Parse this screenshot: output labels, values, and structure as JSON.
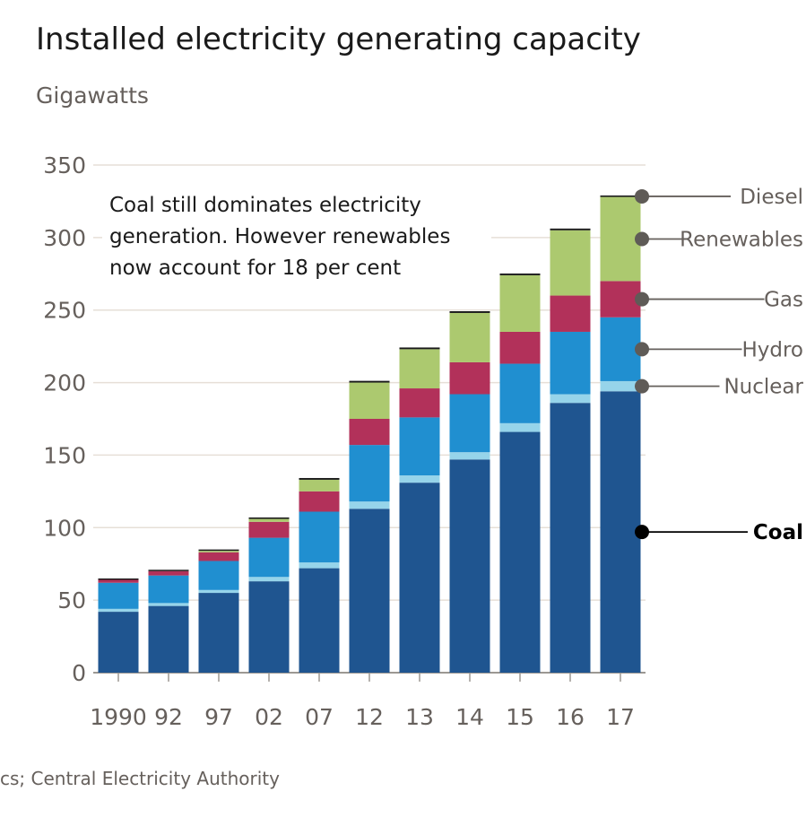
{
  "title": "Installed electricity generating capacity",
  "subtitle": "Gigawatts",
  "source": "cs; Central Electricity Authority",
  "chart_data": {
    "type": "bar",
    "stacked": true,
    "title": "Installed electricity generating capacity",
    "ylabel": "Gigawatts",
    "ylim": [
      0,
      350
    ],
    "yticks": [
      0,
      50,
      100,
      150,
      200,
      250,
      300,
      350
    ],
    "grid": true,
    "categories": [
      "1990",
      "92",
      "97",
      "02",
      "07",
      "12",
      "13",
      "14",
      "15",
      "16",
      "17"
    ],
    "annotation": [
      "Coal still dominates electricity",
      "generation. However renewables",
      "now account for 18 per cent"
    ],
    "series": [
      {
        "name": "Coal",
        "color": "#1f5590",
        "values": [
          42,
          46,
          55,
          63,
          72,
          113,
          131,
          147,
          166,
          186,
          194
        ]
      },
      {
        "name": "Nuclear",
        "color": "#96d4ea",
        "values": [
          2,
          2,
          2,
          3,
          4,
          5,
          5,
          5,
          6,
          6,
          7
        ]
      },
      {
        "name": "Hydro",
        "color": "#208fd0",
        "values": [
          18,
          19,
          20,
          27,
          35,
          39,
          40,
          40,
          41,
          43,
          44
        ]
      },
      {
        "name": "Gas",
        "color": "#b2315a",
        "values": [
          2,
          3,
          6,
          11,
          14,
          18,
          20,
          22,
          22,
          25,
          25
        ]
      },
      {
        "name": "Renewables",
        "color": "#acc96f",
        "values": [
          0,
          0,
          1,
          2,
          8,
          25,
          27,
          34,
          39,
          45,
          58
        ]
      },
      {
        "name": "Diesel",
        "color": "#1a1a1a",
        "values": [
          0.3,
          0.3,
          0.5,
          1,
          1.2,
          1.2,
          1.2,
          1.2,
          1.2,
          1.2,
          1
        ]
      }
    ],
    "legend": [
      {
        "name": "Diesel",
        "bold": false
      },
      {
        "name": "Renewables",
        "bold": false
      },
      {
        "name": "Gas",
        "bold": false
      },
      {
        "name": "Hydro",
        "bold": false
      },
      {
        "name": "Nuclear",
        "bold": false
      },
      {
        "name": "Coal",
        "bold": true
      }
    ]
  }
}
